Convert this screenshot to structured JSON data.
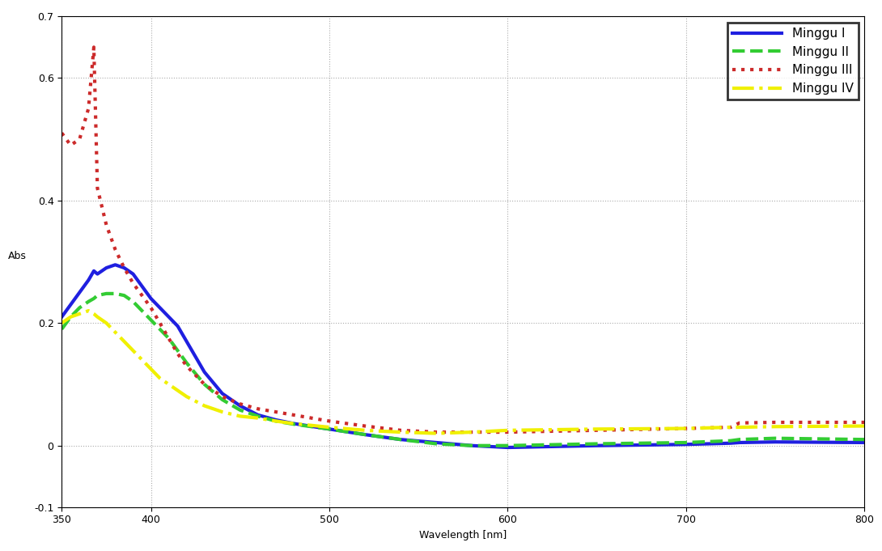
{
  "chart_data": {
    "type": "line",
    "x_label": "Wavelength [nm]",
    "y_label": "Abs",
    "x": [
      350,
      355,
      360,
      365,
      368,
      370,
      375,
      380,
      385,
      390,
      395,
      400,
      405,
      410,
      415,
      420,
      430,
      440,
      450,
      460,
      470,
      480,
      500,
      520,
      540,
      560,
      580,
      600,
      650,
      700,
      725,
      730,
      750,
      800
    ],
    "series": [
      {
        "name": "Minggu I",
        "color": "#1f1fe0",
        "line_style": "solid",
        "values": [
          0.21,
          0.23,
          0.25,
          0.27,
          0.285,
          0.28,
          0.29,
          0.295,
          0.29,
          0.28,
          0.26,
          0.24,
          0.225,
          0.21,
          0.195,
          0.17,
          0.12,
          0.085,
          0.065,
          0.05,
          0.042,
          0.036,
          0.027,
          0.018,
          0.01,
          0.005,
          0.0,
          -0.003,
          0.0,
          0.002,
          0.004,
          0.005,
          0.006,
          0.005
        ]
      },
      {
        "name": "Minggu II",
        "color": "#33cc33",
        "line_style": "dashed",
        "values": [
          0.19,
          0.21,
          0.225,
          0.235,
          0.24,
          0.245,
          0.248,
          0.248,
          0.245,
          0.235,
          0.22,
          0.205,
          0.19,
          0.175,
          0.155,
          0.135,
          0.1,
          0.075,
          0.058,
          0.048,
          0.04,
          0.035,
          0.027,
          0.018,
          0.01,
          0.003,
          0.0,
          0.0,
          0.003,
          0.005,
          0.008,
          0.01,
          0.012,
          0.01
        ]
      },
      {
        "name": "Minggu III",
        "color": "#cc2a2a",
        "line_style": "dotted",
        "values": [
          0.51,
          0.49,
          0.5,
          0.55,
          0.65,
          0.42,
          0.36,
          0.32,
          0.29,
          0.265,
          0.245,
          0.225,
          0.2,
          0.175,
          0.15,
          0.13,
          0.1,
          0.08,
          0.068,
          0.06,
          0.055,
          0.05,
          0.04,
          0.032,
          0.025,
          0.022,
          0.022,
          0.022,
          0.025,
          0.028,
          0.03,
          0.037,
          0.038,
          0.038
        ]
      },
      {
        "name": "Minggu IV",
        "color": "#f0f000",
        "line_style": "dashdot",
        "values": [
          0.2,
          0.21,
          0.215,
          0.22,
          0.215,
          0.21,
          0.2,
          0.185,
          0.17,
          0.155,
          0.14,
          0.125,
          0.11,
          0.1,
          0.09,
          0.08,
          0.065,
          0.055,
          0.048,
          0.045,
          0.04,
          0.036,
          0.03,
          0.025,
          0.022,
          0.02,
          0.022,
          0.025,
          0.027,
          0.028,
          0.03,
          0.03,
          0.031,
          0.032
        ]
      }
    ],
    "xlim": [
      350,
      800
    ],
    "xticks": [
      350,
      400,
      500,
      600,
      700,
      800
    ],
    "ylim": [
      -0.1,
      0.7
    ],
    "yticks": [
      -0.1,
      0,
      0.2,
      0.4,
      0.6,
      0.7
    ],
    "grid": true,
    "legend": "upper right"
  }
}
